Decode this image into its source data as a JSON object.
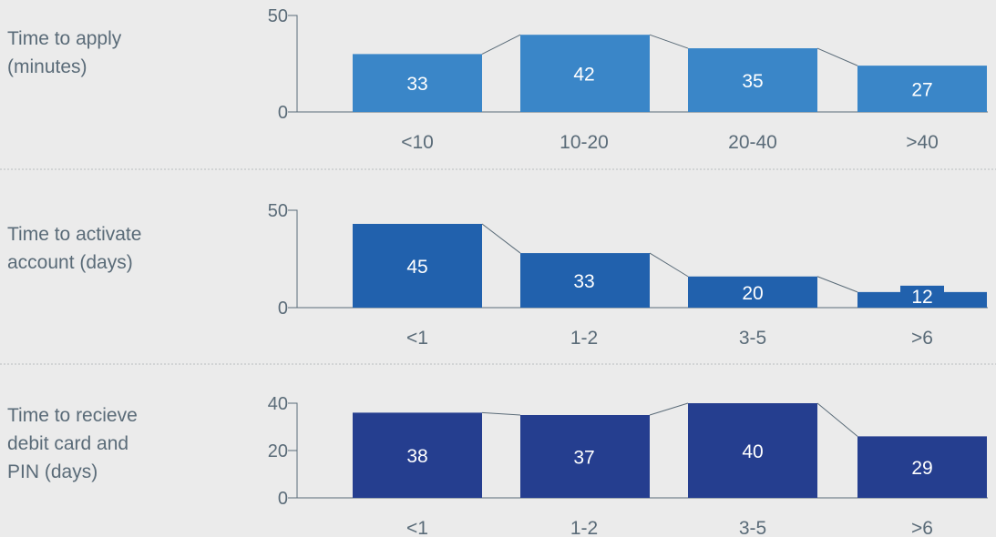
{
  "chart_data": [
    {
      "type": "bar",
      "row_label": [
        "Time to apply",
        "(minutes)"
      ],
      "categories": [
        "<10",
        "10-20",
        "20-40",
        ">40"
      ],
      "values": [
        33,
        42,
        35,
        27
      ],
      "bar_heights": [
        30,
        40,
        33,
        24
      ],
      "ylim": [
        0,
        50
      ],
      "yticks": [
        0,
        50
      ],
      "color": "#3a86c8"
    },
    {
      "type": "bar",
      "row_label": [
        "Time to activate",
        "account (days)"
      ],
      "categories": [
        "<1",
        "1-2",
        "3-5",
        ">6"
      ],
      "values": [
        45,
        33,
        20,
        12
      ],
      "bar_heights": [
        43,
        28,
        16,
        8
      ],
      "ylim": [
        0,
        50
      ],
      "yticks": [
        0,
        50
      ],
      "color": "#2161ad"
    },
    {
      "type": "bar",
      "row_label": [
        "Time to recieve",
        "debit card and",
        "PIN (days)"
      ],
      "categories": [
        "<1",
        "1-2",
        "3-5",
        ">6"
      ],
      "values": [
        38,
        37,
        40,
        29
      ],
      "bar_heights": [
        36,
        35,
        40,
        26
      ],
      "ylim": [
        0,
        40
      ],
      "yticks": [
        0,
        20,
        40
      ],
      "color": "#253e8f"
    }
  ]
}
